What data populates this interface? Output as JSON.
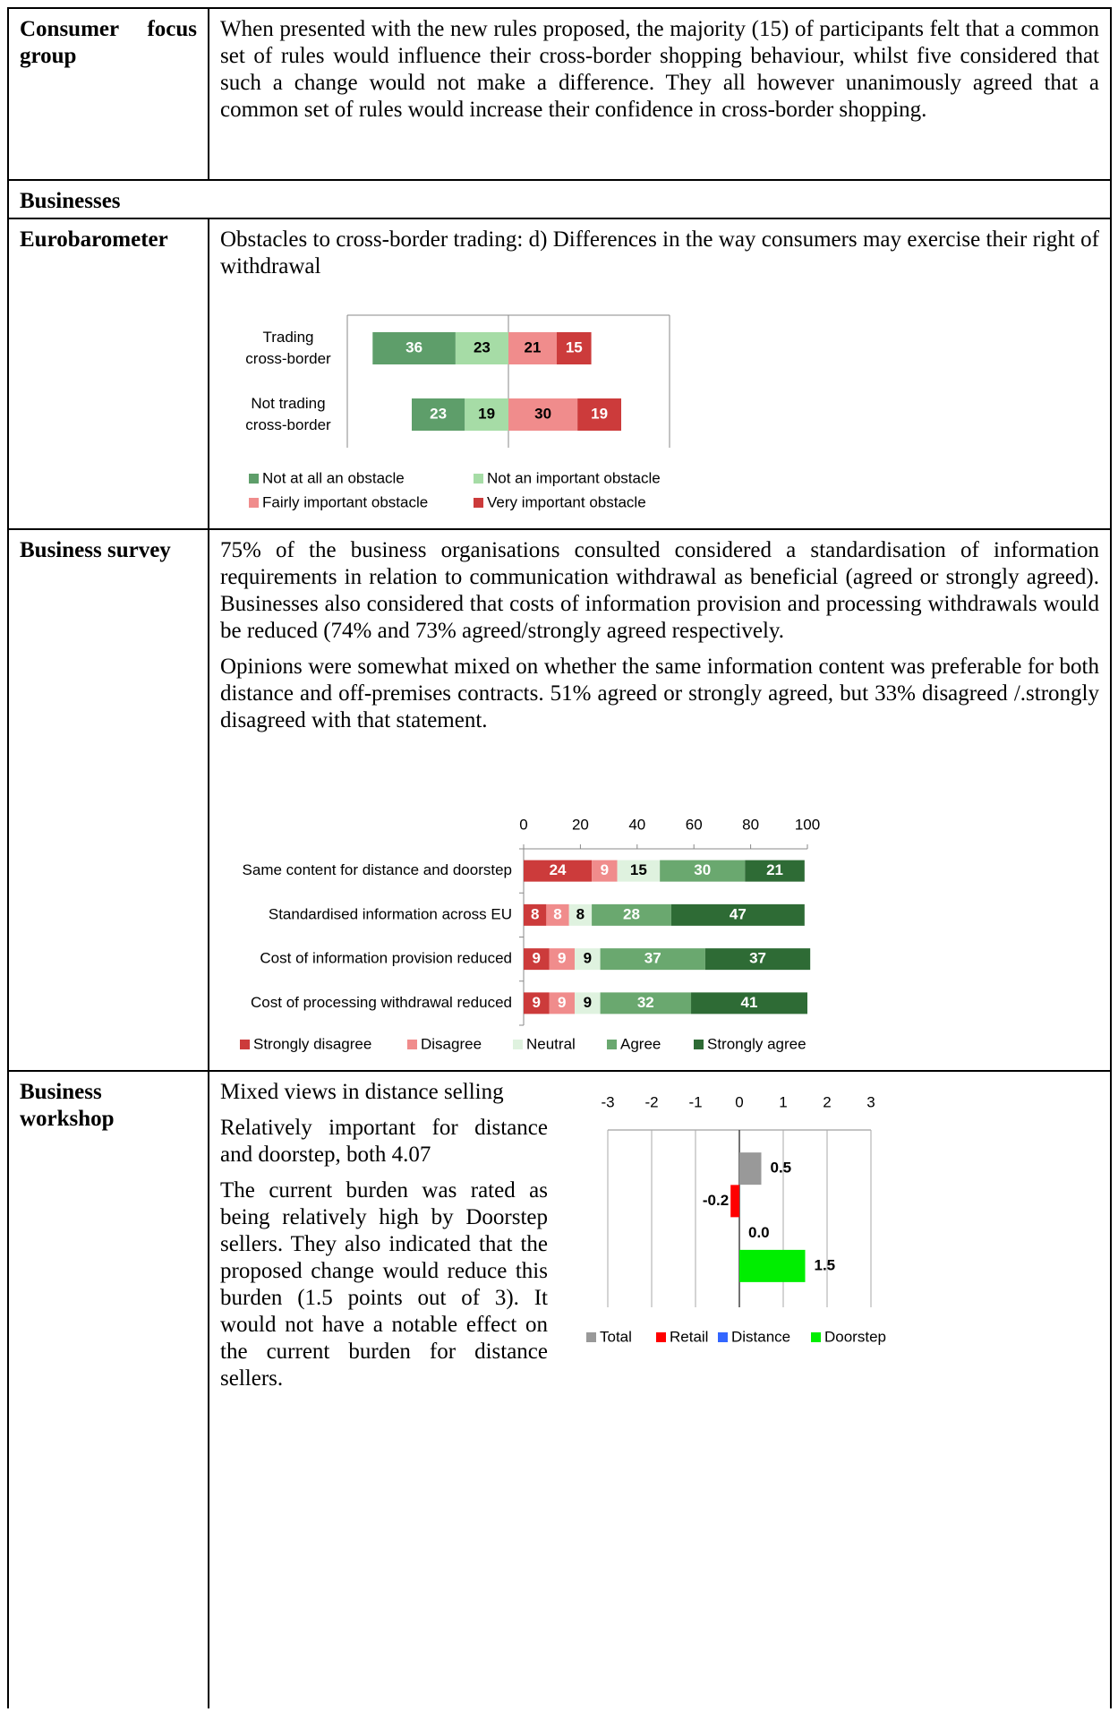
{
  "table": {
    "rows": [
      {
        "label": "Consumer focus group",
        "paragraphs": [
          "When presented with the new rules proposed, the majority (15) of participants felt that a common set of rules would influence their cross-border shopping behaviour, whilst five considered that such a change would not make a difference. They all however unanimously agreed that a common set of rules would increase their confidence in cross-border shopping."
        ]
      },
      {
        "label": "Businesses"
      },
      {
        "label": "Eurobarometer",
        "paragraphs": [
          "Obstacles to cross-border trading: d) Differences in the way consumers may exercise their right of withdrawal"
        ]
      },
      {
        "label": "Business survey",
        "paragraphs": [
          "75% of the business organisations consulted considered a standardisation of information requirements in relation to communication withdrawal as beneficial (agreed or strongly agreed). Businesses also considered that costs of information provision and processing withdrawals would be reduced (74% and 73% agreed/strongly agreed respectively.",
          "Opinions were somewhat mixed on whether the same information content was preferable for both distance and off-premises contracts. 51% agreed or strongly agreed, but 33% disagreed /.strongly disagreed with that statement."
        ]
      },
      {
        "label": "Business workshop",
        "paragraphs": [
          "Mixed views in distance selling",
          "Relatively important for distance and doorstep, both 4.07",
          "The current burden was rated as being relatively high by Doorstep sellers. They also indicated that the proposed change would reduce this burden (1.5 points out of 3). It would not have a notable effect on the current burden for distance sellers."
        ]
      }
    ]
  },
  "chart_data": [
    {
      "type": "diverging_bar",
      "categories": [
        "Trading cross-border",
        "Not trading cross-border"
      ],
      "series": [
        {
          "name": "Not at all an obstacle",
          "color": "#5e9e6a",
          "label_color": "#ffffff",
          "side": "left",
          "values": [
            36,
            23
          ]
        },
        {
          "name": "Not an important obstacle",
          "color": "#a6dca6",
          "label_color": "#000000",
          "side": "left",
          "values": [
            23,
            19
          ]
        },
        {
          "name": "Fairly important obstacle",
          "color": "#f08c8c",
          "label_color": "#000000",
          "side": "right",
          "values": [
            21,
            30
          ]
        },
        {
          "name": "Very important obstacle",
          "color": "#cc3b3b",
          "label_color": "#ffffff",
          "side": "right",
          "values": [
            15,
            19
          ]
        }
      ],
      "xlim": [
        -70,
        70
      ]
    },
    {
      "type": "stacked_bar",
      "categories": [
        "Same content for distance and doorstep",
        "Standardised information across EU",
        "Cost of information provision reduced",
        "Cost of processing withdrawal reduced"
      ],
      "series": [
        {
          "name": "Strongly disagree",
          "color": "#cc3b3b",
          "label_color": "#ffffff",
          "values": [
            24,
            8,
            9,
            9
          ]
        },
        {
          "name": "Disagree",
          "color": "#f08c8c",
          "label_color": "#ffffff",
          "values": [
            9,
            8,
            9,
            9
          ]
        },
        {
          "name": "Neutral",
          "color": "#dff2df",
          "label_color": "#000000",
          "values": [
            15,
            8,
            9,
            9
          ]
        },
        {
          "name": "Agree",
          "color": "#6aa86f",
          "label_color": "#ffffff",
          "values": [
            30,
            28,
            37,
            32
          ]
        },
        {
          "name": "Strongly agree",
          "color": "#2e6b35",
          "label_color": "#ffffff",
          "values": [
            21,
            47,
            37,
            41
          ]
        }
      ],
      "xlim": [
        0,
        100
      ],
      "xticks": [
        0,
        20,
        40,
        60,
        80,
        100
      ]
    },
    {
      "type": "bar",
      "categories": [
        "Total",
        "Retail",
        "Distance",
        "Doorstep"
      ],
      "values": [
        0.5,
        -0.2,
        0,
        1.5
      ],
      "value_labels": [
        "0.5",
        "-0.2",
        "0.0",
        "1.5"
      ],
      "colors": [
        "#999999",
        "#ff0000",
        "#3366ff",
        "#00ee00"
      ],
      "xlim": [
        -3,
        3
      ],
      "xticks": [
        -3,
        -2,
        -1,
        0,
        1,
        2,
        3
      ],
      "grid": true
    }
  ]
}
